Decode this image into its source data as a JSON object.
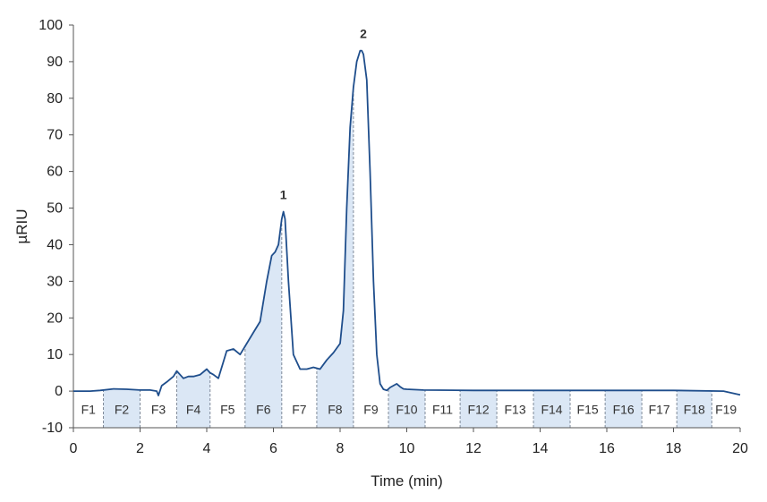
{
  "chart_data": {
    "type": "line",
    "xlabel": "Time (min)",
    "ylabel": "µRIU",
    "xlim": [
      0,
      20
    ],
    "ylim": [
      -10,
      100
    ],
    "xticks": [
      "0",
      "2",
      "4",
      "6",
      "8",
      "10",
      "12",
      "14",
      "16",
      "18",
      "20"
    ],
    "yticks": [
      "-10",
      "0",
      "10",
      "20",
      "30",
      "40",
      "50",
      "60",
      "70",
      "80",
      "90",
      "100"
    ],
    "grid": false,
    "colors": {
      "line": "#1f4e8c",
      "fill": "#dbe7f5",
      "divider": "#7f8a99",
      "axis": "#555555"
    },
    "series": [
      {
        "x": [
          0,
          0.5,
          0.8,
          1.2,
          1.6,
          2.0,
          2.3,
          2.5,
          2.55,
          2.65,
          2.8,
          3.0,
          3.1,
          3.2,
          3.3,
          3.45,
          3.6,
          3.8,
          4.0,
          4.1,
          4.2,
          4.35,
          4.5,
          4.6,
          4.8,
          5.0,
          5.2,
          5.4,
          5.6,
          5.8,
          5.95,
          6.05,
          6.15,
          6.25,
          6.3,
          6.35,
          6.45,
          6.6,
          6.8,
          7.0,
          7.2,
          7.4,
          7.6,
          7.8,
          8.0,
          8.1,
          8.2,
          8.3,
          8.4,
          8.5,
          8.6,
          8.65,
          8.7,
          8.8,
          8.9,
          9.0,
          9.1,
          9.2,
          9.3,
          9.4,
          9.5,
          9.7,
          9.8,
          9.9,
          10.0,
          10.5,
          12,
          14,
          16,
          18,
          19.5,
          20
        ],
        "y": [
          0,
          0,
          0.2,
          0.6,
          0.5,
          0.3,
          0.3,
          0,
          -1.2,
          1.5,
          2.5,
          4,
          5.5,
          4.5,
          3.5,
          4,
          4,
          4.5,
          6,
          5,
          4.5,
          3.5,
          8,
          11,
          11.5,
          10,
          13,
          16,
          19,
          30,
          37,
          38,
          40,
          47,
          49,
          47,
          30,
          10,
          6,
          6,
          6.5,
          6,
          8.5,
          10.5,
          13,
          22,
          50,
          72,
          83,
          90,
          93,
          93,
          92,
          85,
          60,
          30,
          10,
          2,
          0.5,
          0.2,
          1,
          2,
          1.2,
          0.6,
          0.5,
          0.3,
          0.2,
          0.2,
          0.2,
          0.2,
          0,
          -1
        ]
      }
    ],
    "fractions": [
      "F1",
      "F2",
      "F3",
      "F4",
      "F5",
      "F6",
      "F7",
      "F8",
      "F9",
      "F10",
      "F11",
      "F12",
      "F13",
      "F14",
      "F15",
      "F16",
      "F17",
      "F18",
      "F19"
    ],
    "fraction_boundaries": [
      0,
      0.9,
      2.0,
      3.1,
      4.1,
      5.15,
      6.25,
      7.3,
      8.4,
      9.45,
      10.55,
      11.6,
      12.7,
      13.8,
      14.9,
      15.95,
      17.05,
      18.1,
      19.15,
      20
    ],
    "shaded_fractions": [
      2,
      4,
      6,
      8,
      10,
      12,
      14,
      16,
      18
    ],
    "annotations": [
      {
        "text": "1",
        "x": 6.3,
        "y": 49
      },
      {
        "text": "2",
        "x": 8.7,
        "y": 93
      }
    ]
  }
}
